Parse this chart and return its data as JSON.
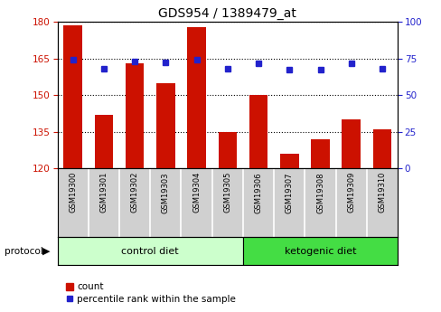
{
  "title": "GDS954 / 1389479_at",
  "samples": [
    "GSM19300",
    "GSM19301",
    "GSM19302",
    "GSM19303",
    "GSM19304",
    "GSM19305",
    "GSM19306",
    "GSM19307",
    "GSM19308",
    "GSM19309",
    "GSM19310"
  ],
  "counts": [
    178.5,
    142,
    163,
    155,
    178,
    135,
    150,
    126,
    132,
    140,
    136
  ],
  "percentile_ranks": [
    74,
    68,
    73,
    72.5,
    74,
    68,
    72,
    67.5,
    67.5,
    72,
    68
  ],
  "ylim_left": [
    120,
    180
  ],
  "ylim_right": [
    0,
    100
  ],
  "yticks_left": [
    120,
    135,
    150,
    165,
    180
  ],
  "yticks_right": [
    0,
    25,
    50,
    75,
    100
  ],
  "bar_color": "#cc1100",
  "dot_color": "#2222cc",
  "bar_bottom": 120,
  "control_color": "#ccffcc",
  "ketogenic_color": "#44dd44",
  "protocol_label": "protocol",
  "legend_count_label": "count",
  "legend_percentile_label": "percentile rank within the sample",
  "bg_color": "#d0d0d0",
  "grid_color": "black",
  "title_fontsize": 10,
  "tick_fontsize": 7.5,
  "label_fontsize": 8
}
